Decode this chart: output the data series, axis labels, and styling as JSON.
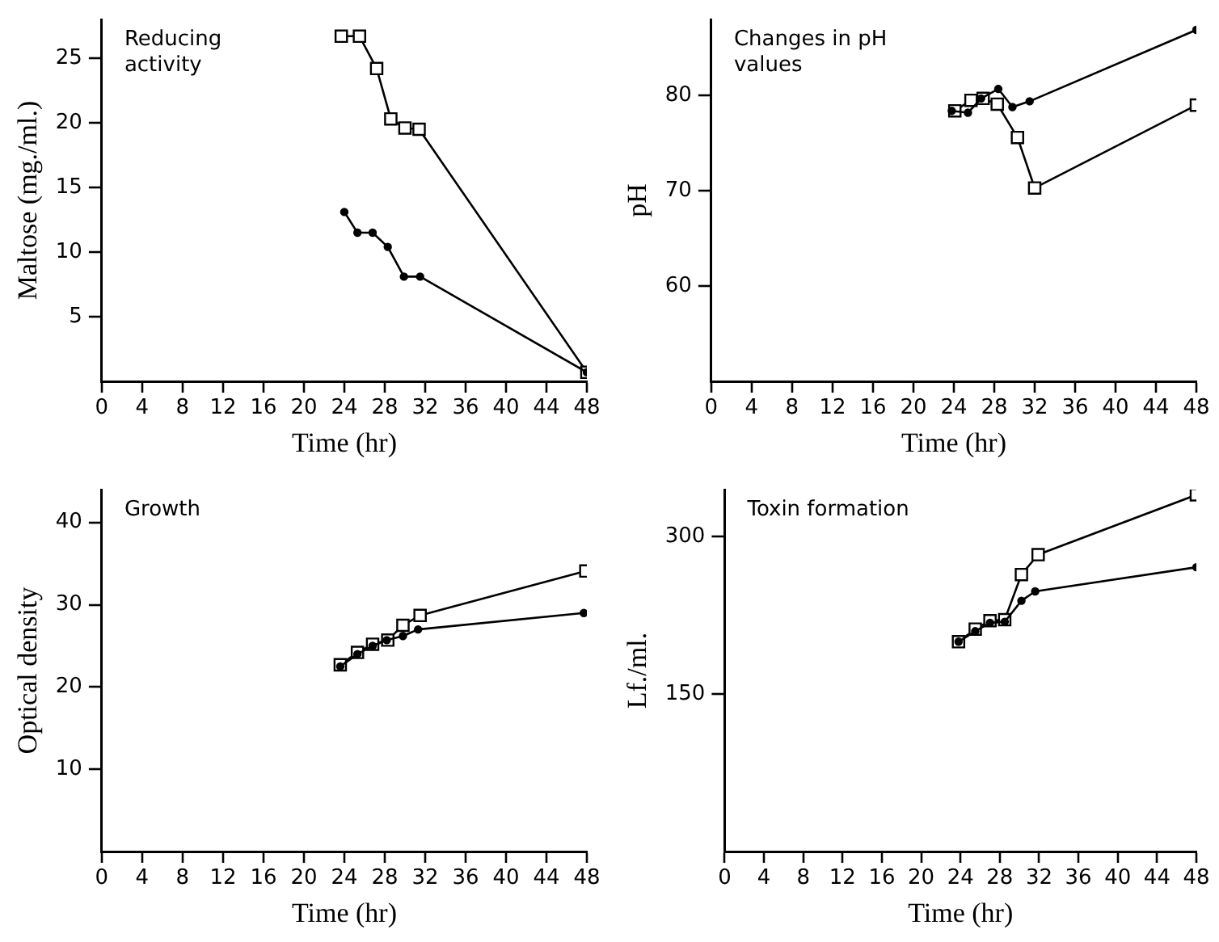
{
  "chart_data": [
    {
      "type": "line",
      "xlabel": "Time (hr)",
      "ylabel": "Maltose (mg./ml.)",
      "annotations": [
        "Reducing activity"
      ],
      "xlim": [
        0,
        48
      ],
      "xticks": [
        0,
        4,
        8,
        12,
        16,
        20,
        24,
        28,
        32,
        36,
        40,
        44,
        48
      ],
      "ylim": [
        0,
        28
      ],
      "yticks": [
        5,
        10,
        15,
        20,
        25
      ],
      "grid": false,
      "legend": false,
      "line_style": "solid",
      "series": [
        {
          "color": "#000000",
          "marker": "square",
          "x": [
            23.7,
            25.5,
            27.2,
            28.6,
            30,
            31.4,
            48
          ],
          "values": [
            26.7,
            26.7,
            24.2,
            20.3,
            19.6,
            19.5,
            0.7
          ]
        },
        {
          "color": "#000000",
          "marker": "circle",
          "x": [
            24,
            25.3,
            26.8,
            28.3,
            29.9,
            31.5,
            48
          ],
          "values": [
            13.1,
            11.5,
            11.5,
            10.4,
            8.1,
            8.1,
            0.7
          ]
        }
      ]
    },
    {
      "type": "line",
      "xlabel": "Time (hr)",
      "ylabel": "pH",
      "annotations": [
        "Changes in pH values"
      ],
      "xlim": [
        0,
        48
      ],
      "xticks": [
        0,
        4,
        8,
        12,
        16,
        20,
        24,
        28,
        32,
        36,
        40,
        44,
        48
      ],
      "ylim": [
        50,
        88
      ],
      "yticks": [
        60,
        70,
        80
      ],
      "grid": false,
      "legend": false,
      "line_style": "solid",
      "series": [
        {
          "color": "#000000",
          "marker": "circle",
          "x": [
            23.8,
            25.4,
            26.7,
            28.4,
            29.8,
            31.5,
            48
          ],
          "values": [
            78.4,
            78.2,
            79.7,
            80.7,
            78.8,
            79.4,
            86.9
          ]
        },
        {
          "color": "#000000",
          "marker": "square",
          "x": [
            24.1,
            25.7,
            26.9,
            28.3,
            30.3,
            32,
            48
          ],
          "values": [
            78.4,
            79.5,
            79.7,
            79.1,
            75.6,
            70.3,
            79
          ]
        }
      ]
    },
    {
      "type": "line",
      "xlabel": "Time (hr)",
      "ylabel": "Optical density",
      "annotations": [
        "Growth"
      ],
      "xlim": [
        0,
        48
      ],
      "xticks": [
        0,
        4,
        8,
        12,
        16,
        20,
        24,
        28,
        32,
        36,
        40,
        44,
        48
      ],
      "ylim": [
        0,
        44
      ],
      "yticks": [
        10,
        20,
        30,
        40
      ],
      "grid": false,
      "legend": false,
      "line_style": "solid",
      "series": [
        {
          "color": "#000000",
          "marker": "square",
          "x": [
            23.6,
            25.3,
            26.8,
            28.3,
            29.8,
            31.5,
            47.9
          ],
          "values": [
            22.7,
            24.2,
            25.2,
            25.7,
            27.5,
            28.7,
            34.1
          ]
        },
        {
          "color": "#000000",
          "marker": "circle",
          "x": [
            23.6,
            25.3,
            26.8,
            28.2,
            29.8,
            31.3,
            47.7
          ],
          "values": [
            22.5,
            24,
            25,
            25.7,
            26.2,
            27,
            29
          ]
        }
      ]
    },
    {
      "type": "line",
      "xlabel": "Time (hr)",
      "ylabel": "Lf./ml.",
      "annotations": [
        "Toxin formation"
      ],
      "xlim": [
        0,
        48
      ],
      "xticks": [
        0,
        4,
        8,
        12,
        16,
        20,
        24,
        28,
        32,
        36,
        40,
        44,
        48
      ],
      "ylim": [
        0,
        345
      ],
      "yticks": [
        150,
        300
      ],
      "grid": false,
      "legend": false,
      "line_style": "solid",
      "series": [
        {
          "color": "#000000",
          "marker": "square",
          "x": [
            23.8,
            25.5,
            27,
            28.5,
            30.2,
            31.9,
            48
          ],
          "values": [
            200,
            212,
            220,
            221,
            264,
            283,
            340
          ]
        },
        {
          "color": "#000000",
          "marker": "circle",
          "x": [
            23.8,
            25.5,
            27,
            28.5,
            30.2,
            31.6,
            48
          ],
          "values": [
            200,
            210,
            218,
            219,
            239,
            248,
            271
          ]
        }
      ]
    }
  ]
}
